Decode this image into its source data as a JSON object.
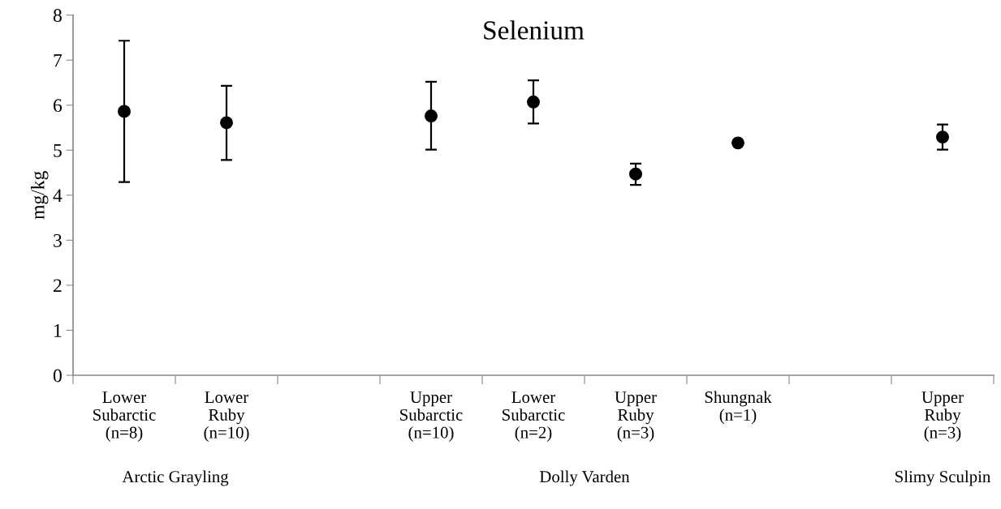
{
  "chart_data": {
    "type": "scatter",
    "title": "Selenium",
    "ylabel": "mg/kg",
    "categories": [
      "Lower\nSubarctic\n(n=8)",
      "Lower\nRuby\n(n=10)",
      null,
      "Upper\nSubarctic\n(n=10)",
      "Lower\nSubarctic\n(n=2)",
      "Upper\nRuby\n(n=3)",
      "Shungnak\n(n=1)",
      null,
      "Upper\nRuby\n(n=3)"
    ],
    "series": [
      {
        "color": "#000000",
        "values": [
          5.86,
          5.61,
          null,
          5.76,
          6.07,
          4.47,
          5.16,
          null,
          5.29
        ],
        "errors": [
          [
            4.29,
            7.43
          ],
          [
            4.78,
            6.43
          ],
          null,
          [
            5.01,
            6.52
          ],
          [
            5.59,
            6.55
          ],
          [
            4.23,
            4.7
          ],
          null,
          null,
          [
            5.01,
            5.57
          ]
        ]
      }
    ],
    "annotations": [
      "Arctic Grayling",
      "Dolly Varden",
      "Slimy Sculpin"
    ],
    "ylim": [
      0,
      8
    ],
    "yticks": [
      0,
      1,
      2,
      3,
      4,
      5,
      6,
      7,
      8
    ],
    "grid": false,
    "legend": false,
    "marker": "circle"
  }
}
